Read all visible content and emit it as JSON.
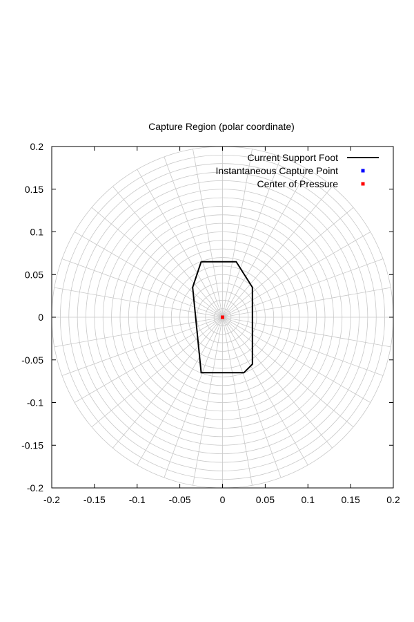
{
  "chart_data": {
    "type": "line",
    "title": "Capture Region (polar coordinate)",
    "xlabel": "",
    "ylabel": "",
    "xlim": [
      -0.2,
      0.2
    ],
    "ylim": [
      -0.2,
      0.2
    ],
    "x_ticks": [
      -0.2,
      -0.15,
      -0.1,
      -0.05,
      0,
      0.05,
      0.1,
      0.15,
      0.2
    ],
    "y_ticks": [
      -0.2,
      -0.15,
      -0.1,
      -0.05,
      0,
      0.05,
      0.1,
      0.15,
      0.2
    ],
    "x_tick_labels": [
      "-0.2",
      "-0.15",
      "-0.1",
      "-0.05",
      "0",
      "0.05",
      "0.1",
      "0.15",
      "0.2"
    ],
    "y_tick_labels": [
      "-0.2",
      "-0.15",
      "-0.1",
      "-0.05",
      "0",
      "0.05",
      "0.1",
      "0.15",
      "0.2"
    ],
    "grid": "polar",
    "polar_grid": {
      "radii": [
        0.01,
        0.02,
        0.03,
        0.04,
        0.05,
        0.06,
        0.07,
        0.08,
        0.09,
        0.1,
        0.11,
        0.12,
        0.13,
        0.14,
        0.15,
        0.16,
        0.17,
        0.18,
        0.19,
        0.2
      ],
      "angle_step_deg": 10
    },
    "legend": "top-right",
    "series": [
      {
        "name": "Current Support Foot",
        "style": "line",
        "color": "#000000",
        "points": [
          [
            -0.025,
            0.065
          ],
          [
            0.016,
            0.065
          ],
          [
            0.035,
            0.035
          ],
          [
            0.035,
            -0.055
          ],
          [
            0.025,
            -0.065
          ],
          [
            -0.025,
            -0.065
          ],
          [
            -0.035,
            0.035
          ],
          [
            -0.025,
            0.065
          ]
        ]
      },
      {
        "name": "Instantaneous Capture Point",
        "style": "point",
        "color": "#0000ff",
        "points": [
          [
            0.0,
            0.0
          ]
        ]
      },
      {
        "name": "Center of Pressure",
        "style": "point",
        "color": "#ff0000",
        "points": [
          [
            0.0,
            0.0
          ]
        ]
      }
    ]
  }
}
